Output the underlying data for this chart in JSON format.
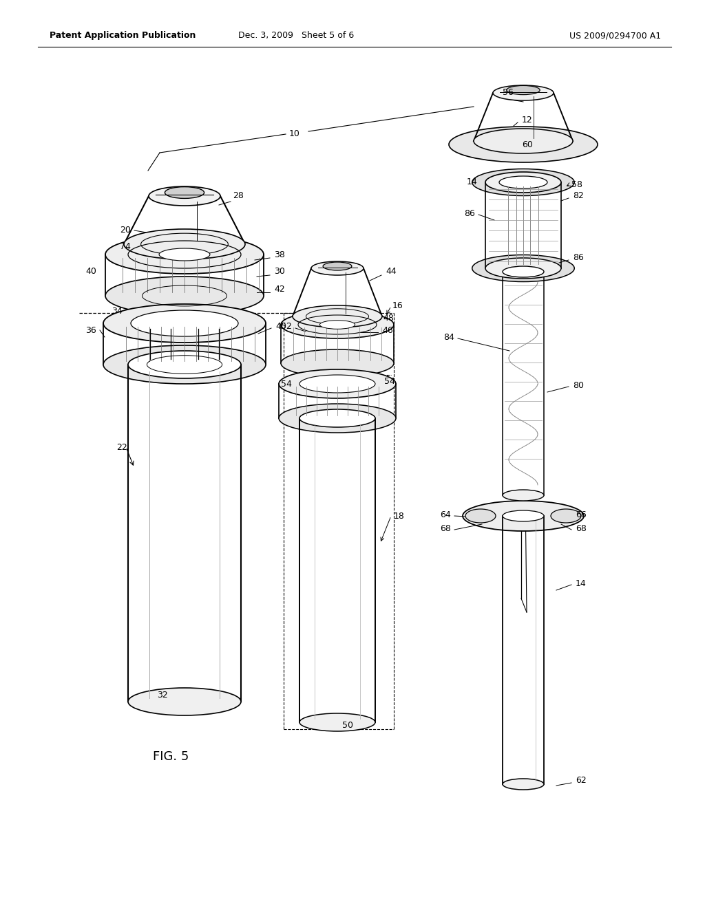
{
  "background_color": "#ffffff",
  "header_left": "Patent Application Publication",
  "header_center": "Dec. 3, 2009   Sheet 5 of 6",
  "header_right": "US 2009/0294700 A1",
  "figure_label": "FIG. 5",
  "page_width": 10.24,
  "page_height": 13.2,
  "dpi": 100
}
